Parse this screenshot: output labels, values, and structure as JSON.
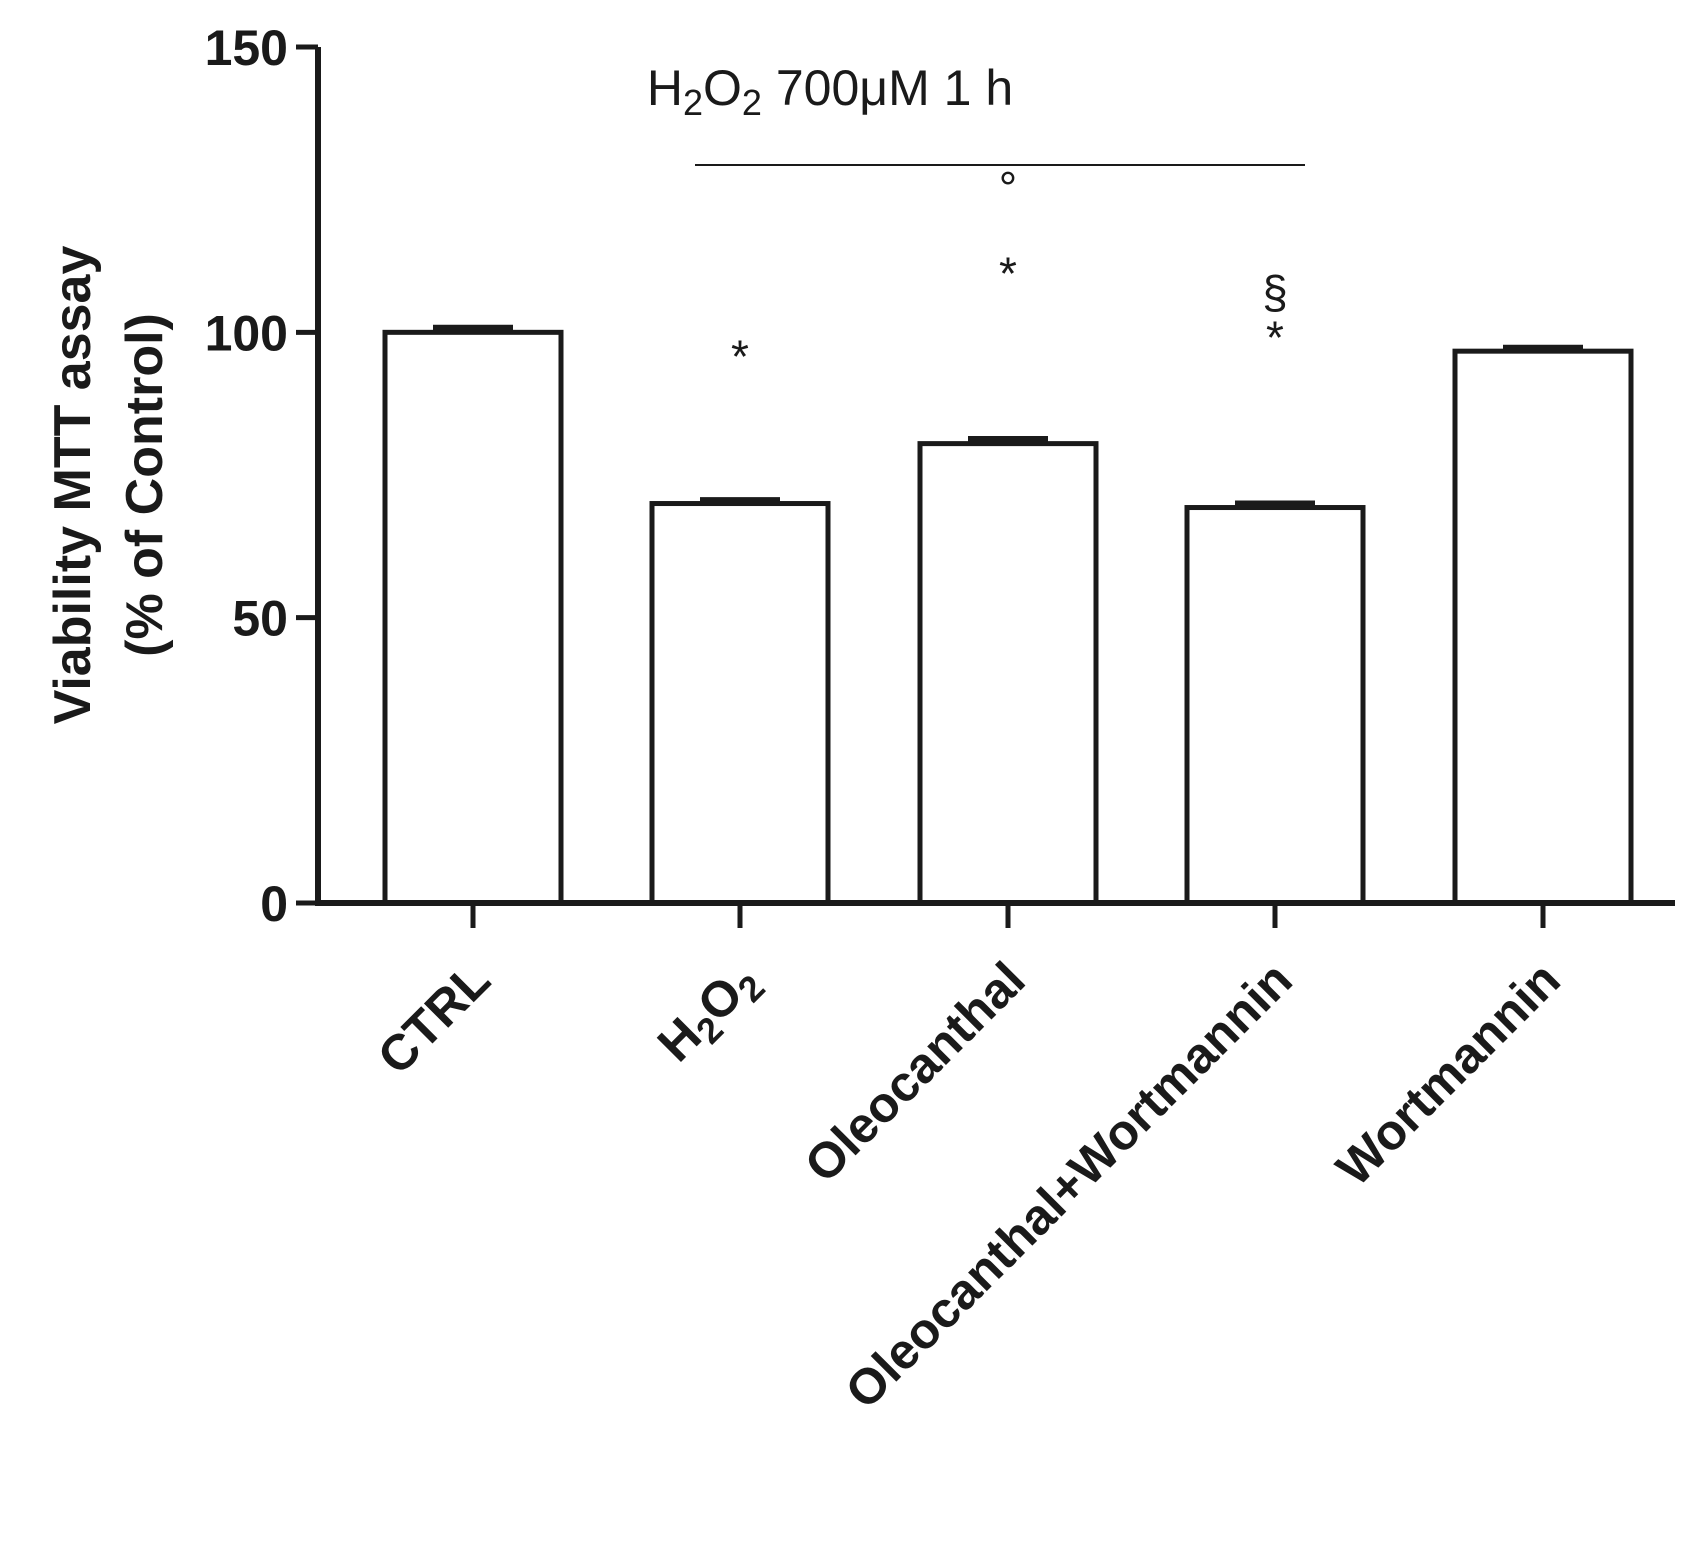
{
  "chart_data": {
    "type": "bar",
    "categories": [
      "CTRL",
      "H2O2",
      "Oleocanthal",
      "Oleocanthal+Wortmannin",
      "Wortmannin"
    ],
    "category_labels": [
      {
        "main": "CTRL",
        "sub": ""
      },
      {
        "main": "H",
        "sub": "2",
        "rest": "O",
        "sub2": "2"
      },
      {
        "main": "Oleocanthal"
      },
      {
        "main": "Oleocanthal+Wortmannin"
      },
      {
        "main": "Wortmannin"
      }
    ],
    "values": [
      100,
      70,
      80.5,
      69.3,
      96.7
    ],
    "errors": [
      0.8,
      0.6,
      0.8,
      0.7,
      0.6
    ],
    "annotations": [
      [],
      [
        "*"
      ],
      [
        "*",
        "°"
      ],
      [
        "*",
        "§"
      ],
      []
    ],
    "ylabel": "Viability MTT assay",
    "ylabel_line2": "(% of Control)",
    "ylim": [
      0,
      150
    ],
    "yticks": [
      "0",
      "50",
      "100",
      "150"
    ],
    "bracket": {
      "label_H": "H",
      "label_sub1": "2",
      "label_O": "O",
      "label_sub2": "2",
      "label_rest": " 700μM 1 h",
      "spans": [
        "H2O2",
        "Oleocanthal+Wortmannin"
      ]
    },
    "colors": {
      "bar_fill": "#ffffff",
      "stroke": "#1a1a1a"
    }
  }
}
